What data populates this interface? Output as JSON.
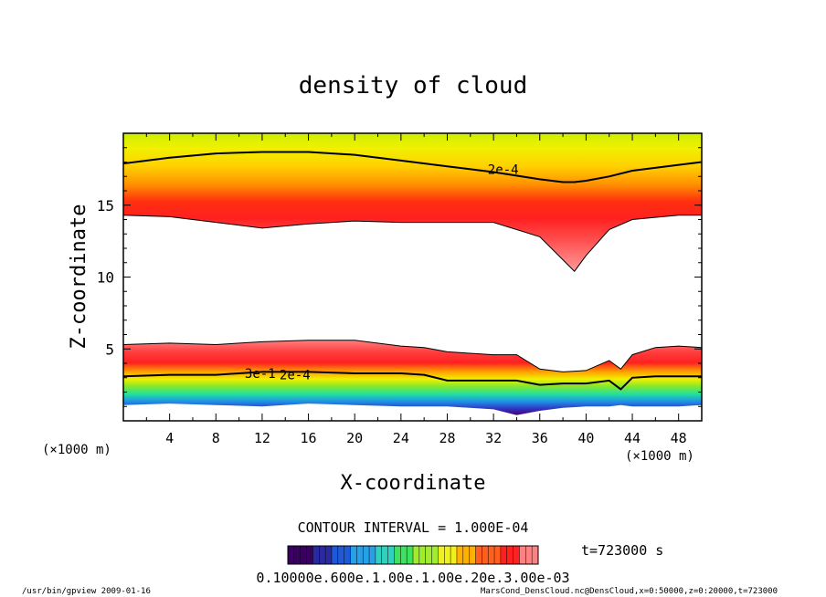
{
  "chart_data": {
    "type": "contour",
    "title": "density of cloud",
    "xlabel": "X-coordinate",
    "ylabel": "Z-coordinate",
    "x_unit_label": "(×1000 m)",
    "x_unit_label_right": "(×1000 m)",
    "xlim": [
      0,
      50
    ],
    "ylim": [
      0,
      20
    ],
    "x_ticks": [
      "4",
      "8",
      "12",
      "16",
      "20",
      "24",
      "28",
      "32",
      "36",
      "40",
      "44",
      "48"
    ],
    "y_ticks": [
      "5",
      "10",
      "15"
    ],
    "contour_labels": [
      {
        "text": "2e-4",
        "x": 31.5,
        "z": 17.5
      },
      {
        "text": "2e-4",
        "x": 13.5,
        "z": 3.2
      },
      {
        "text": "3e-1",
        "x": 10.5,
        "z": 3.3
      }
    ],
    "upper_cloud_layer": {
      "x": [
        0,
        4,
        8,
        12,
        16,
        20,
        24,
        28,
        32,
        36,
        38,
        39,
        40,
        42,
        44,
        48,
        50
      ],
      "bottom_z": [
        14.3,
        14.2,
        13.8,
        13.4,
        13.7,
        13.9,
        13.8,
        13.8,
        13.8,
        12.8,
        11.2,
        10.4,
        11.5,
        13.3,
        14.0,
        14.3,
        14.3
      ],
      "contour_2e-4_z": [
        17.9,
        18.3,
        18.6,
        18.7,
        18.7,
        18.5,
        18.1,
        17.7,
        17.3,
        16.8,
        16.6,
        16.6,
        16.7,
        17.0,
        17.4,
        17.8,
        18.0
      ]
    },
    "lower_cloud_layer": {
      "x": [
        0,
        4,
        8,
        12,
        16,
        20,
        24,
        26,
        28,
        32,
        34,
        36,
        38,
        40,
        42,
        43,
        44,
        46,
        48,
        50
      ],
      "top_z": [
        5.3,
        5.4,
        5.3,
        5.5,
        5.6,
        5.6,
        5.2,
        5.1,
        4.8,
        4.6,
        4.6,
        3.6,
        3.4,
        3.5,
        4.2,
        3.6,
        4.6,
        5.1,
        5.2,
        5.1
      ],
      "contour_2e-4_z": [
        3.1,
        3.2,
        3.2,
        3.4,
        3.4,
        3.3,
        3.3,
        3.2,
        2.8,
        2.8,
        2.8,
        2.5,
        2.6,
        2.6,
        2.8,
        2.2,
        3.0,
        3.1,
        3.1,
        3.1
      ],
      "bottom_z": [
        1.1,
        1.2,
        1.1,
        1.0,
        1.2,
        1.1,
        1.0,
        1.0,
        1.0,
        0.8,
        0.4,
        0.7,
        0.9,
        1.0,
        1.0,
        1.1,
        1.0,
        1.0,
        1.0,
        1.1
      ]
    },
    "contour_interval_text": "CONTOUR INTERVAL = 1.000E-04",
    "colorbar": {
      "overlapping_labels_text": "0.10000e.600e.1.00e.1.00e.20e.3.00e-03",
      "colors": [
        "#3a0060",
        "#2a2aa0",
        "#1e5ad8",
        "#28a0e8",
        "#30d0c0",
        "#40e060",
        "#a0ec30",
        "#f0f020",
        "#ffb000",
        "#ff6020",
        "#ff2020",
        "#ff8080"
      ]
    }
  },
  "annotations": {
    "time_label": "t=723000 s",
    "footer_left": "/usr/bin/gpview  2009-01-16",
    "footer_right": "MarsCond_DensCloud.nc@DensCloud,x=0:50000,z=0:20000,t=723000"
  }
}
